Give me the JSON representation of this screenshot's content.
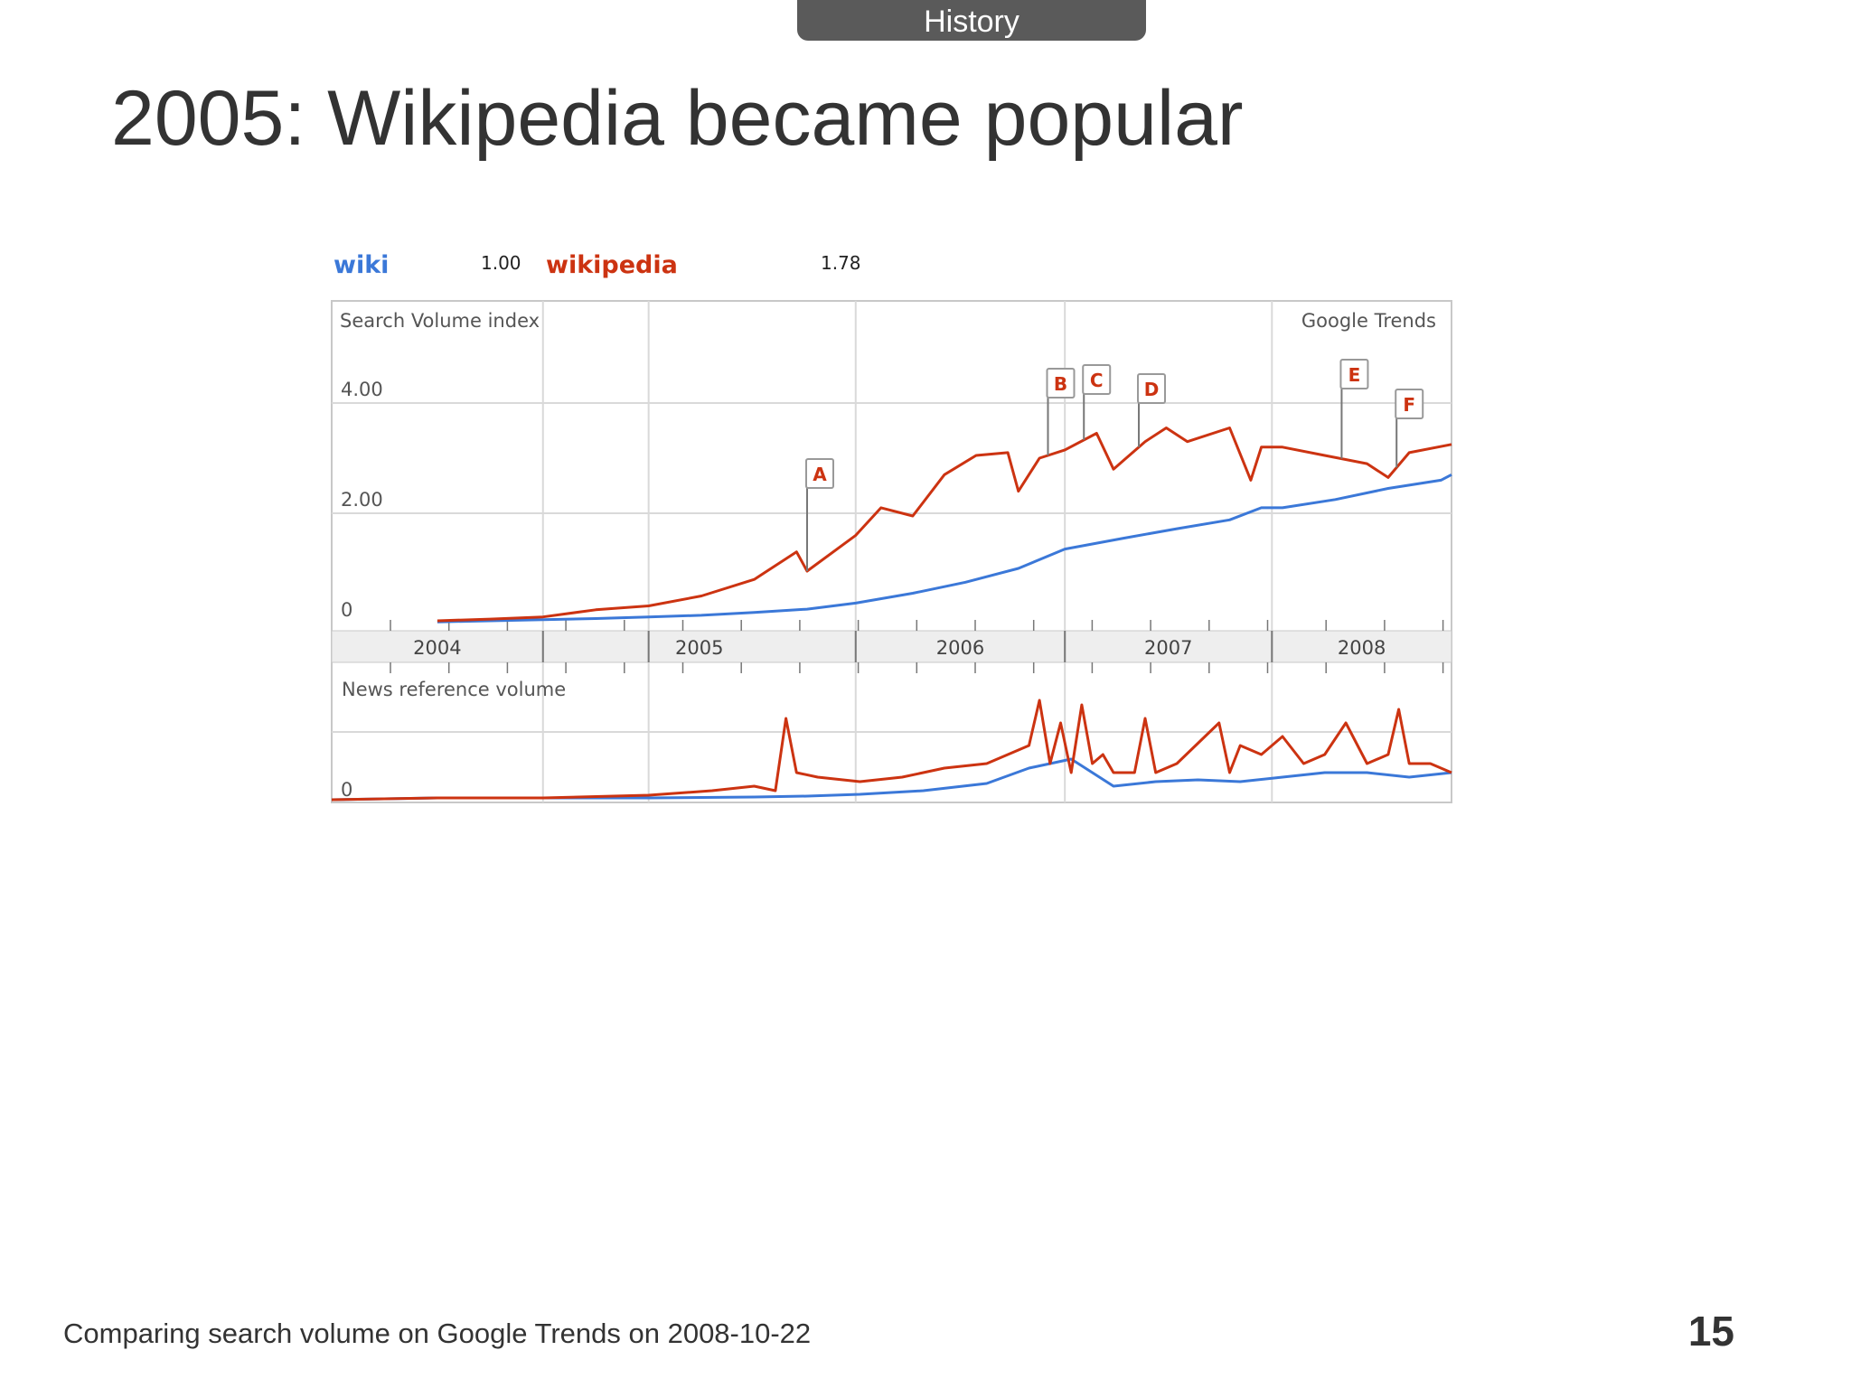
{
  "header": {
    "section_tab": "History"
  },
  "slide": {
    "title": "2005: Wikipedia became popular",
    "footer_note": "Comparing search volume on Google Trends on 2008-10-22",
    "page_number": "15"
  },
  "colors": {
    "wiki": "#3b78d8",
    "wikipedia": "#cc3311",
    "grid": "#d9d9d9",
    "year_band": "#eeeeee"
  },
  "chart_data": {
    "type": "line",
    "source_label": "Google Trends",
    "legend": [
      {
        "term": "wiki",
        "average": "1.00"
      },
      {
        "term": "wikipedia",
        "average": "1.78"
      }
    ],
    "search_panel": {
      "ylabel": "Search Volume index",
      "ylim": [
        0,
        5.1
      ],
      "yticks": [
        {
          "value": 0,
          "label": "0"
        },
        {
          "value": 2,
          "label": "2.00"
        },
        {
          "value": 4,
          "label": "4.00"
        }
      ],
      "series": [
        {
          "name": "wiki",
          "x": [
            2004.0,
            2004.25,
            2004.5,
            2004.75,
            2005.0,
            2005.25,
            2005.5,
            2005.75,
            2005.98,
            2006.25,
            2006.5,
            2006.75,
            2006.97,
            2007.25,
            2007.5,
            2007.75,
            2007.9,
            2008.0,
            2008.25,
            2008.5,
            2008.75,
            2008.8
          ],
          "values": [
            0.03,
            0.05,
            0.07,
            0.09,
            0.12,
            0.15,
            0.2,
            0.26,
            0.37,
            0.55,
            0.75,
            1.0,
            1.35,
            1.55,
            1.72,
            1.88,
            2.1,
            2.1,
            2.25,
            2.45,
            2.6,
            2.7
          ]
        },
        {
          "name": "wikipedia",
          "x": [
            2004.0,
            2004.25,
            2004.5,
            2004.75,
            2005.0,
            2005.25,
            2005.5,
            2005.7,
            2005.75,
            2005.98,
            2006.1,
            2006.25,
            2006.4,
            2006.55,
            2006.7,
            2006.75,
            2006.85,
            2006.97,
            2007.12,
            2007.2,
            2007.35,
            2007.45,
            2007.55,
            2007.75,
            2007.85,
            2007.9,
            2008.0,
            2008.2,
            2008.4,
            2008.5,
            2008.6,
            2008.8
          ],
          "values": [
            0.05,
            0.08,
            0.12,
            0.25,
            0.32,
            0.5,
            0.8,
            1.3,
            0.95,
            1.6,
            2.1,
            1.95,
            2.7,
            3.05,
            3.1,
            2.4,
            3.0,
            3.15,
            3.45,
            2.8,
            3.3,
            3.55,
            3.3,
            3.55,
            2.6,
            3.2,
            3.2,
            3.05,
            2.9,
            2.65,
            3.1,
            3.25
          ]
        }
      ],
      "markers": [
        {
          "label": "A",
          "x": 2005.75
        },
        {
          "label": "B",
          "x": 2006.89
        },
        {
          "label": "C",
          "x": 2007.06
        },
        {
          "label": "D",
          "x": 2007.32
        },
        {
          "label": "E",
          "x": 2008.28
        },
        {
          "label": "F",
          "x": 2008.54
        }
      ]
    },
    "x_axis": {
      "xlim": [
        2003.5,
        2008.8
      ],
      "tick_labels": [
        "2004",
        "2005",
        "2006",
        "2007",
        "2008"
      ]
    },
    "news_panel": {
      "ylabel": "News reference volume",
      "ytick_label": "0",
      "ylim": [
        0,
        1
      ],
      "series": [
        {
          "name": "wiki",
          "x": [
            2003.5,
            2004.0,
            2004.5,
            2005.0,
            2005.5,
            2005.75,
            2006.0,
            2006.3,
            2006.6,
            2006.8,
            2007.0,
            2007.2,
            2007.4,
            2007.6,
            2007.8,
            2008.0,
            2008.2,
            2008.4,
            2008.6,
            2008.8
          ],
          "values": [
            0.0,
            0.02,
            0.02,
            0.02,
            0.03,
            0.04,
            0.06,
            0.1,
            0.18,
            0.35,
            0.45,
            0.15,
            0.2,
            0.22,
            0.2,
            0.25,
            0.3,
            0.3,
            0.25,
            0.3
          ]
        },
        {
          "name": "wikipedia",
          "x": [
            2003.5,
            2004.0,
            2004.5,
            2005.0,
            2005.3,
            2005.5,
            2005.6,
            2005.65,
            2005.7,
            2005.8,
            2006.0,
            2006.2,
            2006.4,
            2006.6,
            2006.7,
            2006.8,
            2006.85,
            2006.9,
            2006.95,
            2007.0,
            2007.05,
            2007.1,
            2007.15,
            2007.2,
            2007.3,
            2007.35,
            2007.4,
            2007.5,
            2007.7,
            2007.75,
            2007.8,
            2007.9,
            2008.0,
            2008.1,
            2008.2,
            2008.3,
            2008.4,
            2008.5,
            2008.55,
            2008.6,
            2008.7,
            2008.8
          ],
          "values": [
            0.0,
            0.02,
            0.02,
            0.05,
            0.1,
            0.15,
            0.1,
            0.9,
            0.3,
            0.25,
            0.2,
            0.25,
            0.35,
            0.4,
            0.5,
            0.6,
            1.1,
            0.4,
            0.85,
            0.3,
            1.05,
            0.4,
            0.5,
            0.3,
            0.3,
            0.9,
            0.3,
            0.4,
            0.85,
            0.3,
            0.6,
            0.5,
            0.7,
            0.4,
            0.5,
            0.85,
            0.4,
            0.5,
            1.0,
            0.4,
            0.4,
            0.3
          ]
        }
      ]
    }
  }
}
